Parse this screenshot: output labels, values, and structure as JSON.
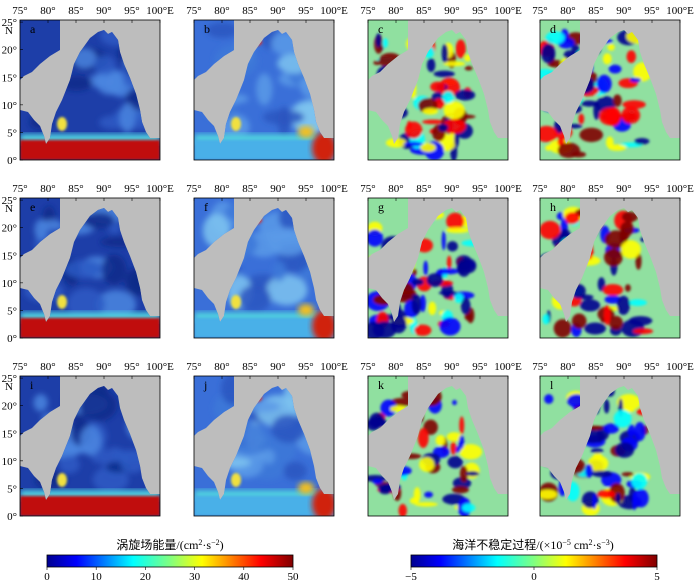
{
  "longitude_ticks": [
    "75°",
    "80°",
    "85°",
    "90°",
    "95°",
    "100°E"
  ],
  "latitude_ticks": [
    "0°",
    "5°",
    "10°",
    "15°",
    "20°",
    "25°"
  ],
  "latitude_unit": "N",
  "panels": [
    {
      "letter": "a",
      "field": "eddy-energy"
    },
    {
      "letter": "b",
      "field": "eddy-energy"
    },
    {
      "letter": "c",
      "field": "instability"
    },
    {
      "letter": "d",
      "field": "instability"
    },
    {
      "letter": "e",
      "field": "eddy-energy"
    },
    {
      "letter": "f",
      "field": "eddy-energy"
    },
    {
      "letter": "g",
      "field": "instability"
    },
    {
      "letter": "h",
      "field": "instability"
    },
    {
      "letter": "i",
      "field": "eddy-energy"
    },
    {
      "letter": "j",
      "field": "eddy-energy"
    },
    {
      "letter": "k",
      "field": "instability"
    },
    {
      "letter": "l",
      "field": "instability"
    }
  ],
  "colorbars": [
    {
      "title_main": "涡旋场能量/(cm",
      "title_sup1": "2",
      "title_mid": "·s",
      "title_sup2": "−2",
      "title_end": ")",
      "ticks": [
        "0",
        "10",
        "20",
        "30",
        "40",
        "50"
      ]
    },
    {
      "title_main": "海洋不稳定过程/(×10",
      "title_sup1": "−5",
      "title_mid": " cm",
      "title_sup2": "2",
      "title_mid2": "·s",
      "title_sup3": "−3",
      "title_end": ")",
      "ticks": [
        "−5",
        "0",
        "5"
      ]
    }
  ],
  "colors": {
    "land": "#bdbdbd",
    "ocean_low": "#1a3a9c",
    "jet": [
      "#00008f",
      "#0000ff",
      "#0080ff",
      "#00ffff",
      "#80ff80",
      "#ffff00",
      "#ff8000",
      "#ff0000",
      "#800000"
    ]
  }
}
